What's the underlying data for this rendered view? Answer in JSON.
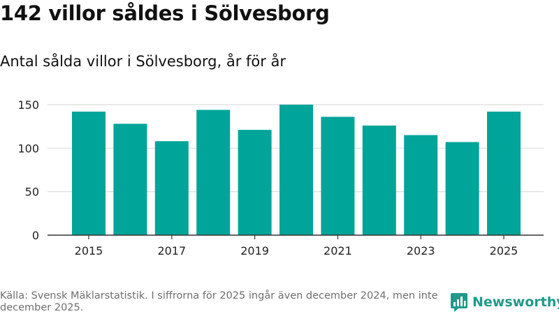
{
  "title": "142 villor såldes i Sölvesborg",
  "subtitle": "Antal sålda villor i Sölvesborg, år för år",
  "footer": "Källa: Svensk Mäklarstatistik. I siffrorna för 2025 ingår även december 2024, men inte december 2025.",
  "brand": "Newsworthy",
  "colors": {
    "bar": "#00a499",
    "brand": "#1f9a8a",
    "grid": "#dddddd",
    "axis": "#333333"
  },
  "chart_data": {
    "type": "bar",
    "title": "142 villor såldes i Sölvesborg",
    "subtitle": "Antal sålda villor i Sölvesborg, år för år",
    "xlabel": "",
    "ylabel": "",
    "categories": [
      "2015",
      "2016",
      "2017",
      "2018",
      "2019",
      "2020",
      "2021",
      "2022",
      "2023",
      "2024",
      "2025"
    ],
    "values": [
      142,
      128,
      108,
      144,
      121,
      150,
      136,
      126,
      115,
      107,
      142
    ],
    "x_tick_labels": [
      "2015",
      "2017",
      "2019",
      "2021",
      "2023",
      "2025"
    ],
    "y_ticks": [
      0,
      50,
      100,
      150
    ],
    "ylim": [
      0,
      158
    ],
    "grid": true
  }
}
